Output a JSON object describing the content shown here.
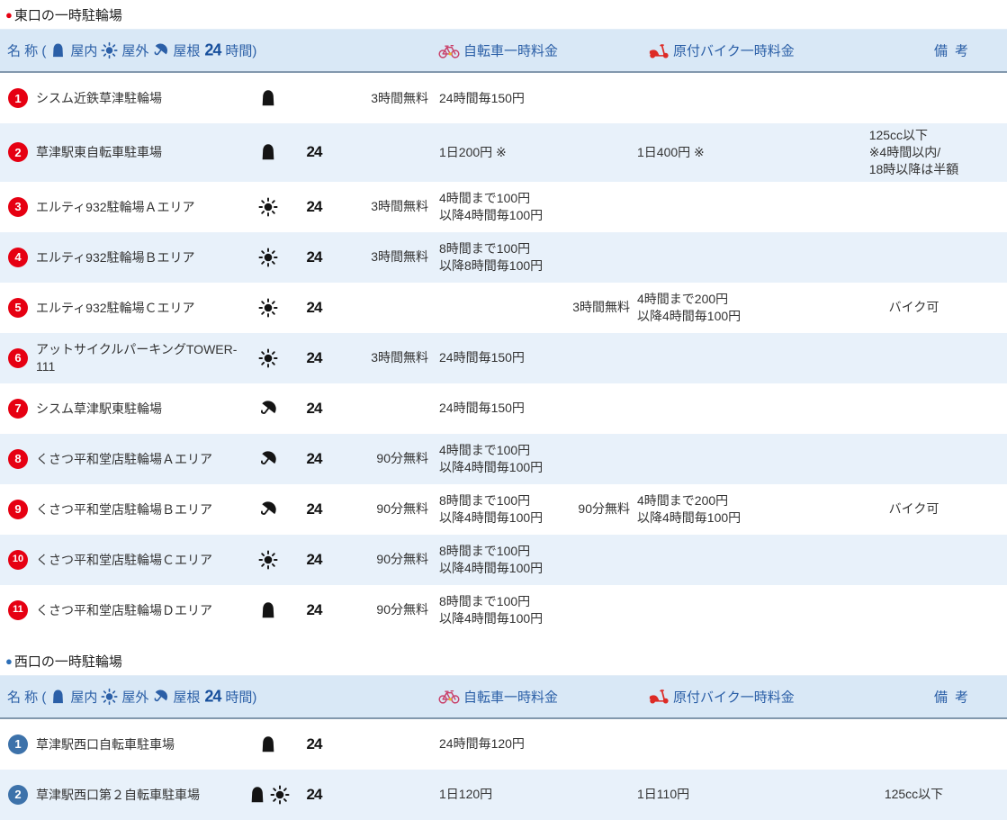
{
  "header": {
    "name_label": "名 称 (",
    "indoor_label": "屋内",
    "outdoor_label": "屋外",
    "roof_label": "屋根",
    "h24_label": "24",
    "hours_label": "時間)",
    "bike_label": "自転車一時料金",
    "moped_label": "原付バイク一時料金",
    "remarks_label": "備 考"
  },
  "colors": {
    "east_accent": "#e60012",
    "west_bullet": "#2d6fb7",
    "west_badge": "#3d72aa",
    "header_text": "#2b5fa7",
    "header_bg": "#d9e8f6",
    "alt_row_bg": "#e8f1fa"
  },
  "sections": [
    {
      "title": "東口の一時駐輪場",
      "bullet_color": "#e60012",
      "badge_color": "#e60012",
      "rows": [
        {
          "num": "1",
          "name": "シスム近鉄草津駐輪場",
          "types": [
            "indoor"
          ],
          "h24": "",
          "bike_free": "3時間無料",
          "bike_fee": [
            "24時間毎150円"
          ],
          "moped_free": "",
          "moped_fee": [],
          "remarks": []
        },
        {
          "num": "2",
          "name": "草津駅東自転車駐車場",
          "types": [
            "indoor"
          ],
          "h24": "24",
          "bike_free": "",
          "bike_fee": [
            "1日200円 ※"
          ],
          "moped_free": "",
          "moped_fee": [
            "1日400円 ※"
          ],
          "remarks": [
            "125cc以下",
            "※4時間以内/",
            "18時以降は半額"
          ]
        },
        {
          "num": "3",
          "name": "エルティ932駐輪場Ａエリア",
          "types": [
            "outdoor"
          ],
          "h24": "24",
          "bike_free": "3時間無料",
          "bike_fee": [
            "4時間まで100円",
            "以降4時間毎100円"
          ],
          "moped_free": "",
          "moped_fee": [],
          "remarks": []
        },
        {
          "num": "4",
          "name": "エルティ932駐輪場Ｂエリア",
          "types": [
            "outdoor"
          ],
          "h24": "24",
          "bike_free": "3時間無料",
          "bike_fee": [
            "8時間まで100円",
            "以降8時間毎100円"
          ],
          "moped_free": "",
          "moped_fee": [],
          "remarks": []
        },
        {
          "num": "5",
          "name": "エルティ932駐輪場Ｃエリア",
          "types": [
            "outdoor"
          ],
          "h24": "24",
          "bike_free": "",
          "bike_fee": [],
          "moped_free": "3時間無料",
          "moped_fee": [
            "4時間まで200円",
            "以降4時間毎100円"
          ],
          "remarks": [
            "バイク可"
          ]
        },
        {
          "num": "6",
          "name": "アットサイクルパーキングTOWER-111",
          "types": [
            "outdoor"
          ],
          "h24": "24",
          "bike_free": "3時間無料",
          "bike_fee": [
            "24時間毎150円"
          ],
          "moped_free": "",
          "moped_fee": [],
          "remarks": []
        },
        {
          "num": "7",
          "name": "シスム草津駅東駐輪場",
          "types": [
            "roof"
          ],
          "h24": "24",
          "bike_free": "",
          "bike_fee": [
            "24時間毎150円"
          ],
          "moped_free": "",
          "moped_fee": [],
          "remarks": []
        },
        {
          "num": "8",
          "name": "くさつ平和堂店駐輪場Ａエリア",
          "types": [
            "roof"
          ],
          "h24": "24",
          "bike_free": "90分無料",
          "bike_fee": [
            "4時間まで100円",
            "以降4時間毎100円"
          ],
          "moped_free": "",
          "moped_fee": [],
          "remarks": []
        },
        {
          "num": "9",
          "name": "くさつ平和堂店駐輪場Ｂエリア",
          "types": [
            "roof"
          ],
          "h24": "24",
          "bike_free": "90分無料",
          "bike_fee": [
            "8時間まで100円",
            "以降4時間毎100円"
          ],
          "moped_free": "90分無料",
          "moped_fee": [
            "4時間まで200円",
            "以降4時間毎100円"
          ],
          "remarks": [
            "バイク可"
          ]
        },
        {
          "num": "10",
          "name": "くさつ平和堂店駐輪場Ｃエリア",
          "types": [
            "outdoor"
          ],
          "h24": "24",
          "bike_free": "90分無料",
          "bike_fee": [
            "8時間まで100円",
            "以降4時間毎100円"
          ],
          "moped_free": "",
          "moped_fee": [],
          "remarks": []
        },
        {
          "num": "11",
          "name": "くさつ平和堂店駐輪場Ｄエリア",
          "types": [
            "indoor"
          ],
          "h24": "24",
          "bike_free": "90分無料",
          "bike_fee": [
            "8時間まで100円",
            "以降4時間毎100円"
          ],
          "moped_free": "",
          "moped_fee": [],
          "remarks": []
        }
      ]
    },
    {
      "title": "西口の一時駐輪場",
      "bullet_color": "#2d6fb7",
      "badge_color": "#3d72aa",
      "rows": [
        {
          "num": "1",
          "name": "草津駅西口自転車駐車場",
          "types": [
            "indoor"
          ],
          "h24": "24",
          "bike_free": "",
          "bike_fee": [
            "24時間毎120円"
          ],
          "moped_free": "",
          "moped_fee": [],
          "remarks": []
        },
        {
          "num": "2",
          "name": "草津駅西口第２自転車駐車場",
          "types": [
            "indoor",
            "outdoor"
          ],
          "h24": "24",
          "bike_free": "",
          "bike_fee": [
            "1日120円"
          ],
          "moped_free": "",
          "moped_fee": [
            "1日110円"
          ],
          "remarks": [
            "125cc以下"
          ]
        }
      ]
    }
  ]
}
